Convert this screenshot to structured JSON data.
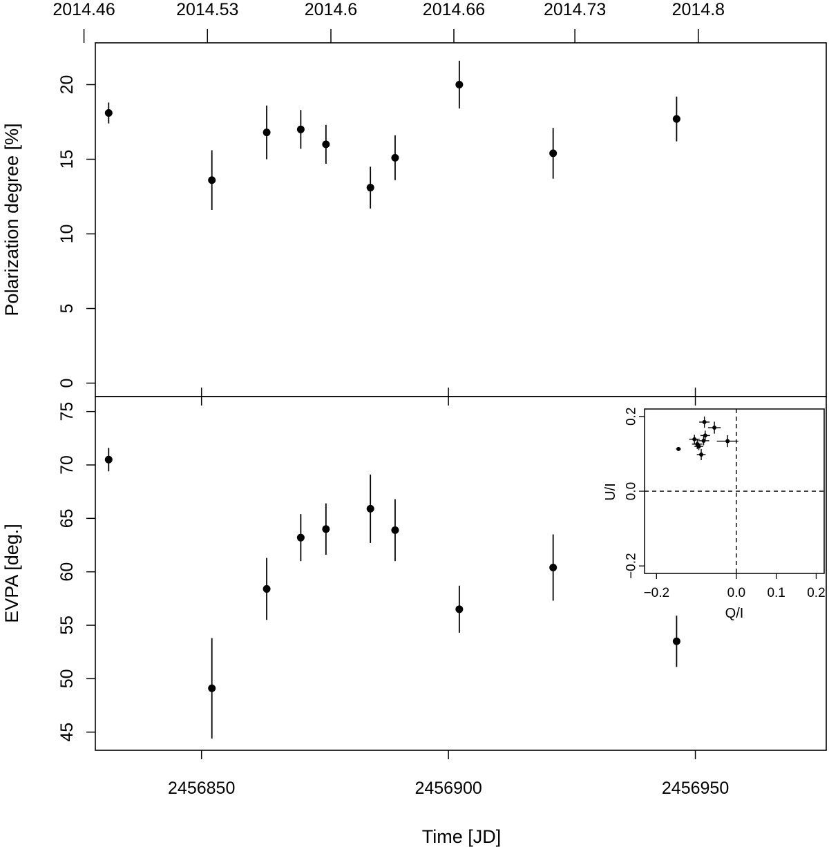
{
  "chart_data": [
    {
      "panel": "polarization-degree",
      "type": "scatter",
      "title": "",
      "xlabel": "",
      "ylabel": "Polarization degree [%]",
      "xlim": [
        2456828.5,
        2456976.5
      ],
      "ylim": [
        -0.9,
        22.8
      ],
      "yticks": [
        0,
        5,
        10,
        15,
        20
      ],
      "top_axis": {
        "ticks": [
          {
            "jd": 2456826.2,
            "label": "2014.46"
          },
          {
            "jd": 2456851.2,
            "label": "2014.53"
          },
          {
            "jd": 2456876.2,
            "label": "2014.6"
          },
          {
            "jd": 2456901.1,
            "label": "2014.66"
          },
          {
            "jd": 2456925.6,
            "label": "2014.73"
          },
          {
            "jd": 2456950.6,
            "label": "2014.8"
          }
        ]
      },
      "grid": false,
      "points": [
        {
          "x": 2456831.2,
          "y": 18.1,
          "err": 0.7
        },
        {
          "x": 2456852.1,
          "y": 13.6,
          "err": 2.0
        },
        {
          "x": 2456863.2,
          "y": 16.8,
          "err": 1.8
        },
        {
          "x": 2456870.1,
          "y": 17.0,
          "err": 1.3
        },
        {
          "x": 2456875.2,
          "y": 16.0,
          "err": 1.3
        },
        {
          "x": 2456884.2,
          "y": 13.1,
          "err": 1.4
        },
        {
          "x": 2456889.2,
          "y": 15.1,
          "err": 1.5
        },
        {
          "x": 2456902.2,
          "y": 20.0,
          "err": 1.6
        },
        {
          "x": 2456921.2,
          "y": 15.4,
          "err": 1.7
        },
        {
          "x": 2456946.2,
          "y": 17.7,
          "err": 1.5
        }
      ]
    },
    {
      "panel": "evpa",
      "type": "scatter",
      "title": "",
      "xlabel": "Time [JD]",
      "ylabel": "EVPA [deg.]",
      "xlim": [
        2456828.5,
        2456976.5
      ],
      "ylim": [
        43.3,
        76.4
      ],
      "yticks": [
        45,
        50,
        55,
        60,
        65,
        70,
        75
      ],
      "xticks": [
        2456850,
        2456900,
        2456950
      ],
      "grid": false,
      "points": [
        {
          "x": 2456831.2,
          "y": 70.5,
          "err": 1.1
        },
        {
          "x": 2456852.1,
          "y": 49.1,
          "err": 4.7
        },
        {
          "x": 2456863.2,
          "y": 58.4,
          "err": 2.9
        },
        {
          "x": 2456870.1,
          "y": 63.2,
          "err": 2.2
        },
        {
          "x": 2456875.2,
          "y": 64.0,
          "err": 2.4
        },
        {
          "x": 2456884.2,
          "y": 65.9,
          "err": 3.2
        },
        {
          "x": 2456889.2,
          "y": 63.9,
          "err": 2.9
        },
        {
          "x": 2456902.2,
          "y": 56.5,
          "err": 2.2
        },
        {
          "x": 2456921.2,
          "y": 60.4,
          "err": 3.1
        },
        {
          "x": 2456946.2,
          "y": 53.5,
          "err": 2.4
        }
      ]
    },
    {
      "panel": "qu-inset",
      "type": "scatter",
      "title": "",
      "xlabel": "Q/I",
      "ylabel": "U/I",
      "xlim": [
        -0.23,
        0.22
      ],
      "ylim": [
        -0.22,
        0.22
      ],
      "xticks": [
        {
          "v": -0.2,
          "label": "-0.2"
        },
        {
          "v": 0.0,
          "label": "0.0"
        },
        {
          "v": 0.1,
          "label": "0.1"
        },
        {
          "v": 0.2,
          "label": "0.2"
        }
      ],
      "yticks": [
        {
          "v": -0.2,
          "label": "-0.2"
        },
        {
          "v": 0.0,
          "label": "0.0"
        },
        {
          "v": 0.2,
          "label": "0.2"
        }
      ],
      "reference_lines": {
        "x": 0.0,
        "y": 0.0,
        "style": "dashed"
      },
      "grid": false,
      "points": [
        {
          "x": -0.145,
          "y": 0.113,
          "xerr": 0.006,
          "yerr": 0.005
        },
        {
          "x": -0.105,
          "y": 0.139,
          "xerr": 0.013,
          "yerr": 0.012
        },
        {
          "x": -0.098,
          "y": 0.126,
          "xerr": 0.013,
          "yerr": 0.013
        },
        {
          "x": -0.094,
          "y": 0.12,
          "xerr": 0.011,
          "yerr": 0.01
        },
        {
          "x": -0.088,
          "y": 0.098,
          "xerr": 0.011,
          "yerr": 0.015
        },
        {
          "x": -0.082,
          "y": 0.135,
          "xerr": 0.014,
          "yerr": 0.012
        },
        {
          "x": -0.08,
          "y": 0.185,
          "xerr": 0.013,
          "yerr": 0.015
        },
        {
          "x": -0.078,
          "y": 0.149,
          "xerr": 0.012,
          "yerr": 0.013
        },
        {
          "x": -0.055,
          "y": 0.17,
          "xerr": 0.016,
          "yerr": 0.016
        },
        {
          "x": -0.022,
          "y": 0.134,
          "xerr": 0.027,
          "yerr": 0.016
        }
      ]
    }
  ]
}
